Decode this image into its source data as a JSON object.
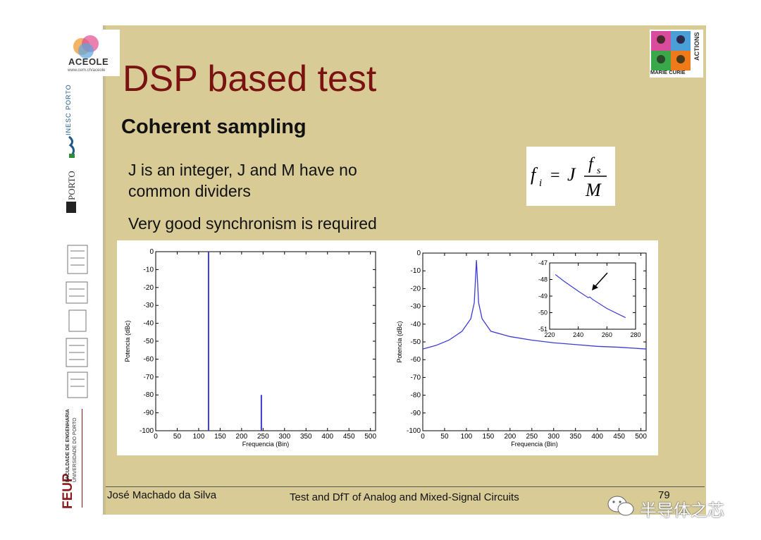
{
  "slide": {
    "title": "DSP based test",
    "subtitle": "Coherent sampling",
    "bullets": [
      "J is an integer, J and M have no",
      "common dividers",
      "Very good synchronism is required"
    ],
    "formula": {
      "lhs": "f",
      "lhs_sub": "i",
      "eq": "=",
      "factor": "J",
      "num": "f",
      "num_sub": "s",
      "den": "M"
    }
  },
  "sidebar": {
    "aceole": "ACEOLE",
    "aceole_url": "www.cern.ch/aceole",
    "inesc": "INESC PORTO",
    "uporto": "PORTO",
    "uporto_u": "U.",
    "feup": "FEUP",
    "feup_line1": "FACULDADE DE ENGENHARIA",
    "feup_line2": "UNIVERSIDADE DO PORTO"
  },
  "marie_curie": {
    "line1": "MARIE CURIE",
    "line2": "ACTIONS"
  },
  "footer": {
    "author": "José Machado da Silva",
    "course": "Test and DfT of Analog and Mixed-Signal Circuits",
    "page": "79"
  },
  "watermark": "半导体之芯",
  "chart_data": [
    {
      "type": "bar",
      "xlabel": "Frequencia (Bin)",
      "ylabel": "Potencia (dBc)",
      "xlim": [
        0,
        512
      ],
      "ylim": [
        -100,
        0
      ],
      "xticks": [
        "0",
        "50",
        "100",
        "150",
        "200",
        "250",
        "300",
        "350",
        "400",
        "450",
        "500"
      ],
      "yticks": [
        "0",
        "-10",
        "-20",
        "-30",
        "-40",
        "-50",
        "-60",
        "-70",
        "-80",
        "-90",
        "-100"
      ],
      "x": [
        123,
        246
      ],
      "values": [
        0,
        -80
      ],
      "color": "#3b3bd8"
    },
    {
      "type": "line",
      "xlabel": "Frequencia (Bin)",
      "ylabel": "Potencia (dBc)",
      "xlim": [
        0,
        512
      ],
      "ylim": [
        -100,
        0
      ],
      "xticks": [
        "0",
        "50",
        "100",
        "150",
        "200",
        "250",
        "300",
        "350",
        "400",
        "450",
        "500"
      ],
      "yticks": [
        "0",
        "-10",
        "-20",
        "-30",
        "-40",
        "-50",
        "-60",
        "-70",
        "-80",
        "-90",
        "-100"
      ],
      "x": [
        0,
        30,
        60,
        90,
        110,
        118,
        123,
        128,
        136,
        156,
        200,
        250,
        300,
        350,
        400,
        450,
        512
      ],
      "y": [
        -54,
        -52,
        -49,
        -44,
        -37,
        -28,
        -4,
        -28,
        -37,
        -44,
        -47,
        -49,
        -50.5,
        -51.5,
        -52.5,
        -53,
        -54
      ],
      "color": "#3b3bd8",
      "inset": {
        "xlim": [
          220,
          280
        ],
        "ylim": [
          -51,
          -47
        ],
        "xticks": [
          "220",
          "240",
          "260",
          "280"
        ],
        "yticks": [
          "-47",
          "-48",
          "-49",
          "-50",
          "-51"
        ],
        "x": [
          224,
          230,
          240,
          247,
          248,
          250,
          260,
          273
        ],
        "y": [
          -47.7,
          -48.1,
          -48.7,
          -49.1,
          -49.05,
          -49.2,
          -49.75,
          -50.3
        ]
      }
    }
  ]
}
